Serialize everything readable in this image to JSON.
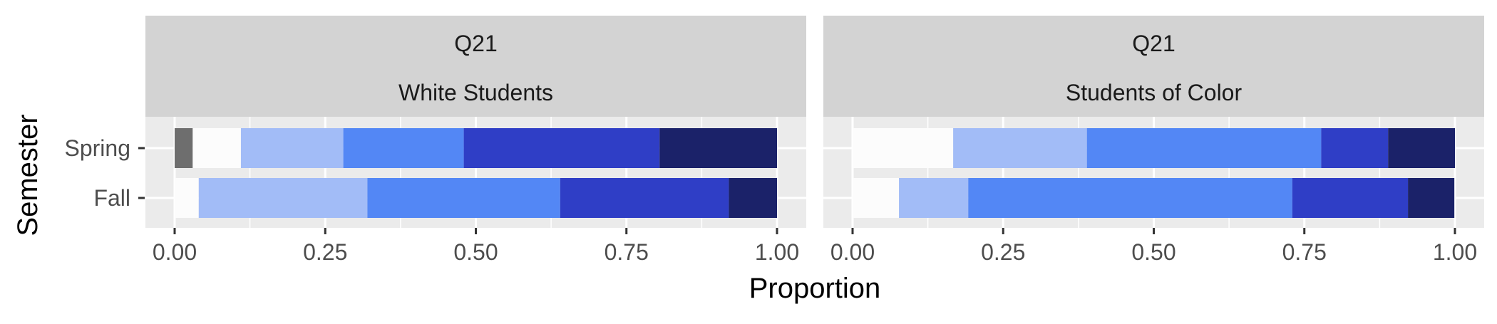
{
  "chart_data": {
    "type": "bar",
    "orientation": "horizontal",
    "stacked": true,
    "xlabel": "Proportion",
    "ylabel": "Semester",
    "xlim": [
      0,
      1
    ],
    "x_ticks": [
      "0.00",
      "0.25",
      "0.50",
      "0.75",
      "1.00"
    ],
    "categories": [
      "Spring",
      "Fall"
    ],
    "legend": "none",
    "grid": true,
    "segment_colors": [
      "#6e6e6e",
      "#fcfcfc",
      "#a2bcf7",
      "#5387f5",
      "#2f3ec6",
      "#1b2269"
    ],
    "panels": [
      {
        "strip_line1": "Q21",
        "strip_line2": "White Students",
        "rows": [
          {
            "category": "Spring",
            "values": [
              0.03,
              0.08,
              0.17,
              0.2,
              0.325,
              0.195
            ]
          },
          {
            "category": "Fall",
            "values": [
              0.0,
              0.04,
              0.28,
              0.32,
              0.28,
              0.08
            ]
          }
        ]
      },
      {
        "strip_line1": "Q21",
        "strip_line2": "Students of Color",
        "rows": [
          {
            "category": "Spring",
            "values": [
              0.0,
              0.167,
              0.222,
              0.389,
              0.111,
              0.111
            ]
          },
          {
            "category": "Fall",
            "values": [
              0.0,
              0.077,
              0.115,
              0.538,
              0.192,
              0.077
            ]
          }
        ]
      }
    ]
  }
}
